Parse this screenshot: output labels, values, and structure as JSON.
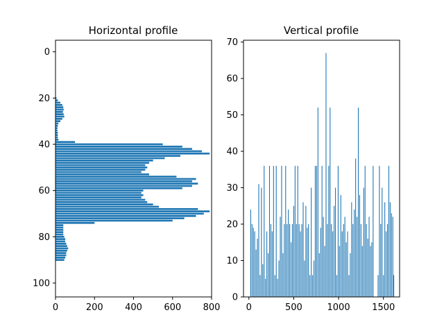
{
  "colors": {
    "bar": "#1f77b4",
    "axis": "#000000",
    "background": "#ffffff"
  },
  "chart_data": [
    {
      "type": "bar",
      "orientation": "horizontal",
      "title": "Horizontal profile",
      "xlabel": "",
      "ylabel": "",
      "xlim": [
        0,
        800
      ],
      "ylim": [
        106,
        -5
      ],
      "y_inverted": true,
      "xticks": [
        0,
        200,
        400,
        600,
        800
      ],
      "yticks": [
        0,
        20,
        40,
        60,
        80,
        100
      ],
      "grid": false,
      "rows": [
        {
          "y": 20,
          "value": 5
        },
        {
          "y": 21,
          "value": 12
        },
        {
          "y": 22,
          "value": 25
        },
        {
          "y": 23,
          "value": 35
        },
        {
          "y": 24,
          "value": 40
        },
        {
          "y": 25,
          "value": 42
        },
        {
          "y": 26,
          "value": 38
        },
        {
          "y": 27,
          "value": 42
        },
        {
          "y": 28,
          "value": 45
        },
        {
          "y": 29,
          "value": 35
        },
        {
          "y": 30,
          "value": 25
        },
        {
          "y": 31,
          "value": 15
        },
        {
          "y": 32,
          "value": 12
        },
        {
          "y": 33,
          "value": 10
        },
        {
          "y": 34,
          "value": 10
        },
        {
          "y": 35,
          "value": 12
        },
        {
          "y": 36,
          "value": 12
        },
        {
          "y": 37,
          "value": 12
        },
        {
          "y": 38,
          "value": 15
        },
        {
          "y": 39,
          "value": 100
        },
        {
          "y": 40,
          "value": 550
        },
        {
          "y": 41,
          "value": 650
        },
        {
          "y": 42,
          "value": 700
        },
        {
          "y": 43,
          "value": 750
        },
        {
          "y": 44,
          "value": 790
        },
        {
          "y": 45,
          "value": 640
        },
        {
          "y": 46,
          "value": 560
        },
        {
          "y": 47,
          "value": 500
        },
        {
          "y": 48,
          "value": 480
        },
        {
          "y": 49,
          "value": 460
        },
        {
          "y": 50,
          "value": 470
        },
        {
          "y": 51,
          "value": 460
        },
        {
          "y": 52,
          "value": 440
        },
        {
          "y": 53,
          "value": 480
        },
        {
          "y": 54,
          "value": 620
        },
        {
          "y": 55,
          "value": 720
        },
        {
          "y": 56,
          "value": 700
        },
        {
          "y": 57,
          "value": 730
        },
        {
          "y": 58,
          "value": 700
        },
        {
          "y": 59,
          "value": 650
        },
        {
          "y": 60,
          "value": 450
        },
        {
          "y": 61,
          "value": 440
        },
        {
          "y": 62,
          "value": 450
        },
        {
          "y": 63,
          "value": 440
        },
        {
          "y": 64,
          "value": 460
        },
        {
          "y": 65,
          "value": 470
        },
        {
          "y": 66,
          "value": 500
        },
        {
          "y": 67,
          "value": 530
        },
        {
          "y": 68,
          "value": 730
        },
        {
          "y": 69,
          "value": 790
        },
        {
          "y": 70,
          "value": 760
        },
        {
          "y": 71,
          "value": 720
        },
        {
          "y": 72,
          "value": 660
        },
        {
          "y": 73,
          "value": 600
        },
        {
          "y": 74,
          "value": 200
        },
        {
          "y": 75,
          "value": 40
        },
        {
          "y": 76,
          "value": 40
        },
        {
          "y": 77,
          "value": 40
        },
        {
          "y": 78,
          "value": 40
        },
        {
          "y": 79,
          "value": 40
        },
        {
          "y": 80,
          "value": 45
        },
        {
          "y": 81,
          "value": 50
        },
        {
          "y": 82,
          "value": 50
        },
        {
          "y": 83,
          "value": 55
        },
        {
          "y": 84,
          "value": 60
        },
        {
          "y": 85,
          "value": 65
        },
        {
          "y": 86,
          "value": 60
        },
        {
          "y": 87,
          "value": 55
        },
        {
          "y": 88,
          "value": 55
        },
        {
          "y": 89,
          "value": 50
        },
        {
          "y": 90,
          "value": 45
        }
      ]
    },
    {
      "type": "bar",
      "orientation": "vertical",
      "title": "Vertical profile",
      "xlabel": "",
      "ylabel": "",
      "xlim": [
        -60,
        1680
      ],
      "ylim": [
        0,
        70.5
      ],
      "xticks": [
        0,
        500,
        1000,
        1500
      ],
      "yticks": [
        0,
        10,
        20,
        30,
        40,
        50,
        60,
        70
      ],
      "grid": false,
      "bars": [
        {
          "x": 20,
          "value": 24
        },
        {
          "x": 35,
          "value": 20
        },
        {
          "x": 50,
          "value": 19
        },
        {
          "x": 65,
          "value": 18
        },
        {
          "x": 80,
          "value": 13
        },
        {
          "x": 95,
          "value": 16
        },
        {
          "x": 110,
          "value": 31
        },
        {
          "x": 125,
          "value": 6
        },
        {
          "x": 140,
          "value": 30
        },
        {
          "x": 155,
          "value": 9
        },
        {
          "x": 170,
          "value": 36
        },
        {
          "x": 185,
          "value": 5
        },
        {
          "x": 200,
          "value": 18
        },
        {
          "x": 215,
          "value": 12
        },
        {
          "x": 230,
          "value": 36
        },
        {
          "x": 245,
          "value": 20
        },
        {
          "x": 260,
          "value": 18
        },
        {
          "x": 275,
          "value": 36
        },
        {
          "x": 290,
          "value": 6
        },
        {
          "x": 305,
          "value": 36
        },
        {
          "x": 320,
          "value": 5
        },
        {
          "x": 335,
          "value": 10
        },
        {
          "x": 350,
          "value": 22
        },
        {
          "x": 365,
          "value": 36
        },
        {
          "x": 380,
          "value": 12
        },
        {
          "x": 395,
          "value": 20
        },
        {
          "x": 410,
          "value": 36
        },
        {
          "x": 425,
          "value": 20
        },
        {
          "x": 440,
          "value": 24
        },
        {
          "x": 455,
          "value": 20
        },
        {
          "x": 470,
          "value": 15
        },
        {
          "x": 485,
          "value": 20
        },
        {
          "x": 500,
          "value": 25
        },
        {
          "x": 515,
          "value": 36
        },
        {
          "x": 530,
          "value": 20
        },
        {
          "x": 545,
          "value": 36
        },
        {
          "x": 560,
          "value": 20
        },
        {
          "x": 575,
          "value": 18
        },
        {
          "x": 590,
          "value": 20
        },
        {
          "x": 605,
          "value": 26
        },
        {
          "x": 620,
          "value": 10
        },
        {
          "x": 635,
          "value": 25
        },
        {
          "x": 650,
          "value": 19
        },
        {
          "x": 665,
          "value": 20
        },
        {
          "x": 680,
          "value": 6
        },
        {
          "x": 695,
          "value": 30
        },
        {
          "x": 710,
          "value": 6
        },
        {
          "x": 725,
          "value": 10
        },
        {
          "x": 740,
          "value": 36
        },
        {
          "x": 755,
          "value": 36
        },
        {
          "x": 770,
          "value": 52
        },
        {
          "x": 785,
          "value": 12
        },
        {
          "x": 800,
          "value": 19
        },
        {
          "x": 815,
          "value": 36
        },
        {
          "x": 830,
          "value": 22
        },
        {
          "x": 845,
          "value": 14
        },
        {
          "x": 860,
          "value": 67
        },
        {
          "x": 875,
          "value": 20
        },
        {
          "x": 890,
          "value": 36
        },
        {
          "x": 905,
          "value": 52
        },
        {
          "x": 920,
          "value": 20
        },
        {
          "x": 935,
          "value": 18
        },
        {
          "x": 950,
          "value": 25
        },
        {
          "x": 965,
          "value": 30
        },
        {
          "x": 980,
          "value": 6
        },
        {
          "x": 995,
          "value": 36
        },
        {
          "x": 1010,
          "value": 14
        },
        {
          "x": 1025,
          "value": 28
        },
        {
          "x": 1040,
          "value": 18
        },
        {
          "x": 1055,
          "value": 20
        },
        {
          "x": 1070,
          "value": 22
        },
        {
          "x": 1085,
          "value": 15
        },
        {
          "x": 1100,
          "value": 18
        },
        {
          "x": 1115,
          "value": 6
        },
        {
          "x": 1130,
          "value": 12
        },
        {
          "x": 1145,
          "value": 26
        },
        {
          "x": 1160,
          "value": 20
        },
        {
          "x": 1175,
          "value": 24
        },
        {
          "x": 1190,
          "value": 38
        },
        {
          "x": 1205,
          "value": 22
        },
        {
          "x": 1220,
          "value": 52
        },
        {
          "x": 1235,
          "value": 28
        },
        {
          "x": 1250,
          "value": 20
        },
        {
          "x": 1265,
          "value": 14
        },
        {
          "x": 1280,
          "value": 30
        },
        {
          "x": 1295,
          "value": 36
        },
        {
          "x": 1310,
          "value": 20
        },
        {
          "x": 1325,
          "value": 16
        },
        {
          "x": 1340,
          "value": 22
        },
        {
          "x": 1355,
          "value": 14
        },
        {
          "x": 1370,
          "value": 15
        },
        {
          "x": 1385,
          "value": 36
        },
        {
          "x": 1440,
          "value": 6
        },
        {
          "x": 1455,
          "value": 36
        },
        {
          "x": 1470,
          "value": 20
        },
        {
          "x": 1485,
          "value": 30
        },
        {
          "x": 1500,
          "value": 6
        },
        {
          "x": 1515,
          "value": 26
        },
        {
          "x": 1530,
          "value": 18
        },
        {
          "x": 1545,
          "value": 20
        },
        {
          "x": 1560,
          "value": 36
        },
        {
          "x": 1575,
          "value": 26
        },
        {
          "x": 1590,
          "value": 23
        },
        {
          "x": 1605,
          "value": 22
        },
        {
          "x": 1615,
          "value": 6
        }
      ]
    }
  ]
}
